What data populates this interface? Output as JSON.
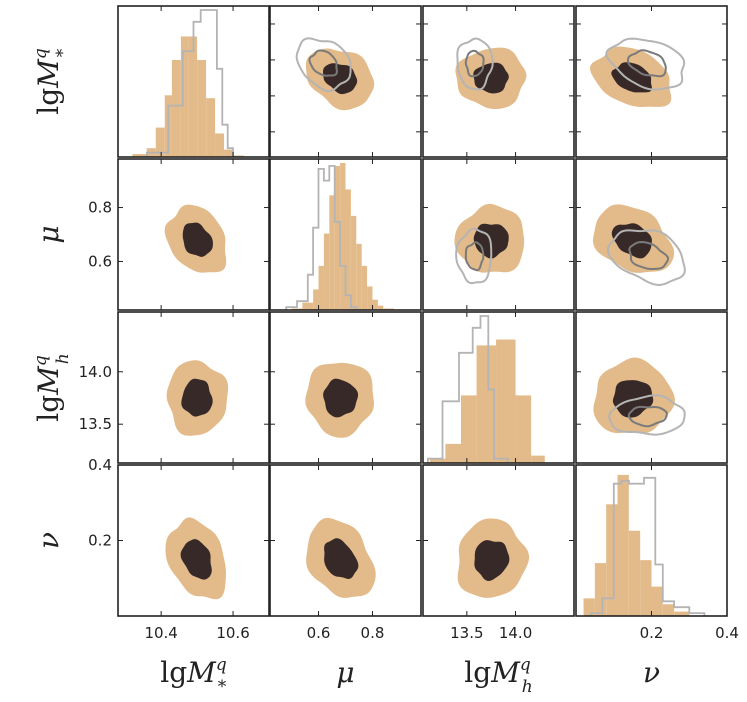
{
  "chart_data": {
    "type": "corner",
    "params": [
      {
        "key": "lgMs",
        "label_main": "lg",
        "label_sym": "M",
        "label_sup": "q",
        "label_sub": "*",
        "xlim": [
          10.28,
          10.7
        ],
        "xticks": [
          10.4,
          10.6
        ],
        "xtick_labels": [
          "10.4",
          "10.6"
        ],
        "ylim": [
          10.28,
          10.7
        ],
        "yticks": [
          10.35,
          10.45,
          10.55,
          10.65
        ],
        "ytick_labels": [
          "",
          "",
          "",
          ""
        ]
      },
      {
        "key": "mu",
        "label_main": "",
        "label_sym": "μ",
        "label_sup": "",
        "label_sub": "",
        "xlim": [
          0.42,
          0.98
        ],
        "xticks": [
          0.6,
          0.8
        ],
        "xtick_labels": [
          "0.6",
          "0.8"
        ],
        "ylim": [
          0.42,
          0.98
        ],
        "yticks": [
          0.6,
          0.8
        ],
        "ytick_labels": [
          "0.6",
          "0.8"
        ]
      },
      {
        "key": "lgMh",
        "label_main": "lg",
        "label_sym": "M",
        "label_sup": "q",
        "label_sub": "h",
        "xlim": [
          13.05,
          14.6
        ],
        "xticks": [
          13.5,
          14.0
        ],
        "xtick_labels": [
          "13.5",
          "14.0"
        ],
        "ylim": [
          13.13,
          14.57
        ],
        "yticks": [
          13.5,
          14.0
        ],
        "ytick_labels": [
          "13.5",
          "14.0"
        ]
      },
      {
        "key": "nu",
        "label_main": "",
        "label_sym": "ν",
        "label_sup": "",
        "label_sub": "",
        "xlim": [
          0.0,
          0.4
        ],
        "xticks": [
          0.2,
          0.4
        ],
        "xtick_labels": [
          "0.2",
          "0.4"
        ],
        "ylim": [
          0.0,
          0.4
        ],
        "yticks": [
          0.2
        ],
        "ytick_labels": [
          "0.2"
        ]
      }
    ],
    "extra_tick_labels": [
      {
        "panel": "row-3-col-0",
        "axis": "y",
        "value": 0.4,
        "label": "0.4"
      }
    ],
    "colors": {
      "outer_fill": "#e3bb8a",
      "inner_fill": "#372927",
      "hist_fill": "#e3bb8a",
      "gray_outer": "#b4b4b4",
      "gray_inner": "#7a7a7a",
      "frame": "#222222"
    },
    "posteriors": {
      "primary": {
        "mean": [
          10.5,
          0.68,
          13.75,
          0.15
        ],
        "std": [
          0.04,
          0.06,
          0.17,
          0.05
        ]
      },
      "comparison": {
        "mean": [
          10.54,
          0.62,
          13.58,
          0.19
        ],
        "std": [
          0.035,
          0.05,
          0.09,
          0.05
        ],
        "shown_in": [
          "row-0-col-1",
          "row-0-col-2",
          "row-0-col-3",
          "row-1-col-2",
          "row-1-col-3",
          "row-2-col-3"
        ]
      },
      "correlations": {
        "lgMs_mu": -0.25,
        "lgMs_lgMh": 0.0,
        "lgMs_nu": -0.3,
        "mu_lgMh": 0.0,
        "mu_nu": -0.3,
        "lgMh_nu": 0.05
      }
    },
    "histograms": {
      "lgMs": {
        "bins": [
          10.32,
          10.36,
          10.385,
          10.41,
          10.43,
          10.455,
          10.475,
          10.5,
          10.525,
          10.55,
          10.575,
          10.6,
          10.63
        ],
        "primary": [
          0.02,
          0.06,
          0.2,
          0.42,
          0.66,
          0.82,
          0.82,
          0.66,
          0.4,
          0.16,
          0.05,
          0.01
        ],
        "comparison_bins": [
          10.36,
          10.42,
          10.46,
          10.49,
          10.51,
          10.53,
          10.555,
          10.57,
          10.585,
          10.6,
          10.63
        ],
        "comparison": [
          0.03,
          0.35,
          0.72,
          0.92,
          1.0,
          1.0,
          0.6,
          0.22,
          0.06,
          0.0
        ]
      },
      "mu": {
        "bins": [
          0.5,
          0.54,
          0.58,
          0.6,
          0.62,
          0.64,
          0.66,
          0.68,
          0.7,
          0.72,
          0.74,
          0.76,
          0.78,
          0.8,
          0.82,
          0.84,
          0.88
        ],
        "primary": [
          0.01,
          0.05,
          0.14,
          0.3,
          0.52,
          0.78,
          0.98,
          1.0,
          0.82,
          0.64,
          0.45,
          0.3,
          0.16,
          0.07,
          0.03,
          0.01
        ],
        "comparison_bins": [
          0.48,
          0.52,
          0.56,
          0.58,
          0.6,
          0.62,
          0.64,
          0.66,
          0.68,
          0.7,
          0.72,
          0.74,
          0.78
        ],
        "comparison": [
          0.02,
          0.06,
          0.24,
          0.56,
          0.96,
          0.88,
          0.98,
          0.6,
          0.3,
          0.1,
          0.02,
          0.0
        ]
      },
      "lgMh": {
        "bins": [
          13.12,
          13.28,
          13.44,
          13.6,
          13.8,
          14.0,
          14.16,
          14.3
        ],
        "primary": [
          0.03,
          0.13,
          0.46,
          0.8,
          0.84,
          0.46,
          0.05
        ],
        "comparison_bins": [
          13.1,
          13.25,
          13.42,
          13.56,
          13.64,
          13.72,
          13.78,
          13.92
        ],
        "comparison": [
          0.03,
          0.42,
          0.75,
          0.92,
          1.0,
          0.5,
          0.03
        ]
      },
      "nu": {
        "bins": [
          0.02,
          0.05,
          0.08,
          0.11,
          0.14,
          0.17,
          0.2,
          0.23,
          0.26,
          0.3
        ],
        "primary": [
          0.12,
          0.36,
          0.76,
          0.96,
          0.58,
          0.38,
          0.2,
          0.08,
          0.03
        ],
        "comparison_bins": [
          0.04,
          0.07,
          0.1,
          0.12,
          0.14,
          0.16,
          0.18,
          0.21,
          0.23,
          0.26,
          0.3,
          0.34
        ],
        "comparison": [
          0.02,
          0.12,
          0.9,
          0.92,
          0.9,
          0.9,
          0.94,
          0.35,
          0.1,
          0.06,
          0.02
        ]
      }
    }
  }
}
